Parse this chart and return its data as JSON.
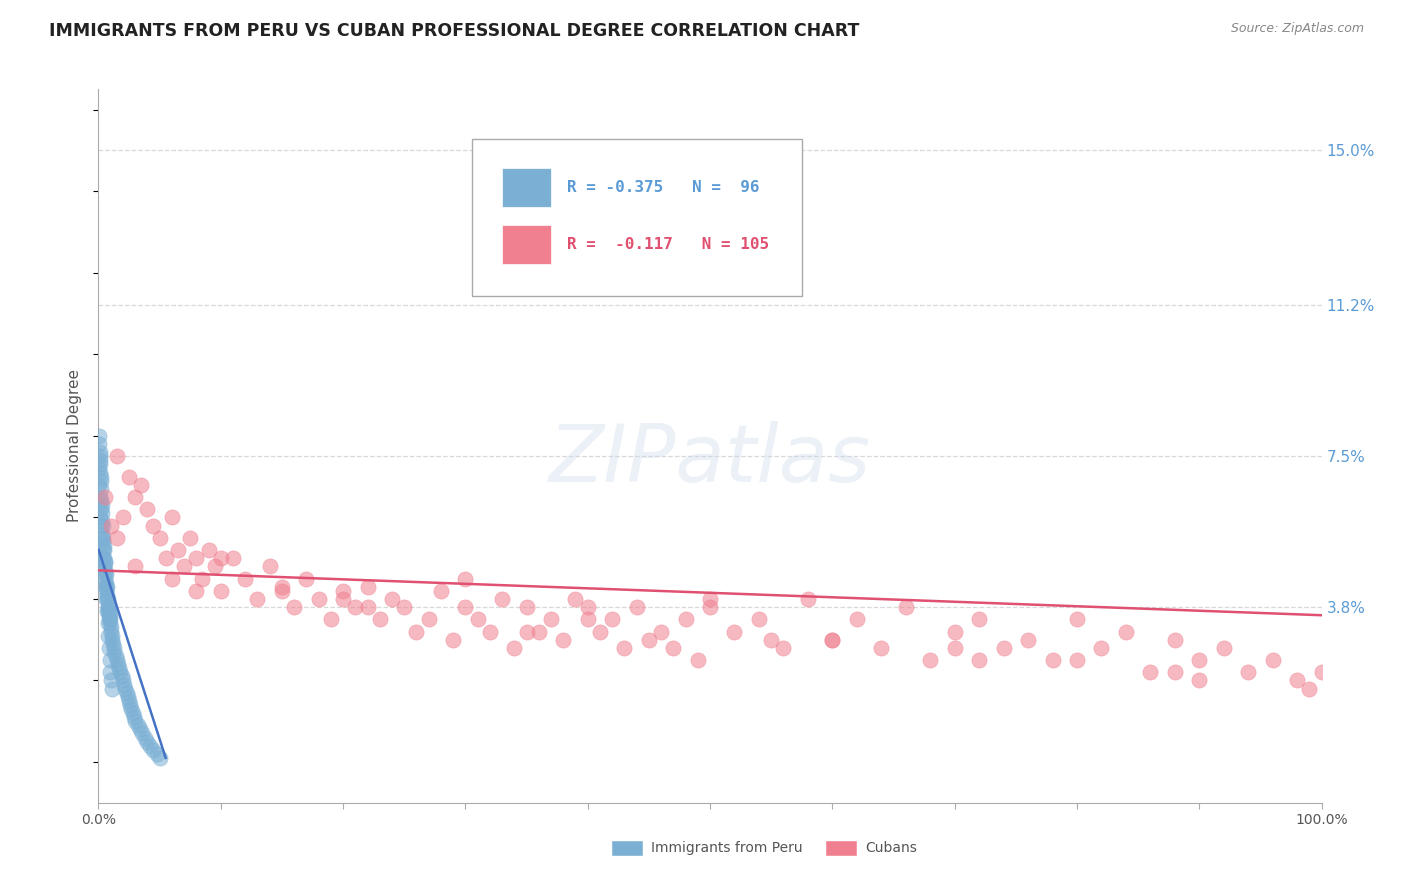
{
  "title": "IMMIGRANTS FROM PERU VS CUBAN PROFESSIONAL DEGREE CORRELATION CHART",
  "source_text": "Source: ZipAtlas.com",
  "ylabel": "Professional Degree",
  "y_tick_labels_right": [
    "3.8%",
    "7.5%",
    "11.2%",
    "15.0%"
  ],
  "y_tick_values_right": [
    0.038,
    0.075,
    0.112,
    0.15
  ],
  "x_min": 0.0,
  "x_max": 100.0,
  "y_min": -0.01,
  "y_max": 0.165,
  "series_peru": {
    "color": "#7bafd4",
    "legend_color": "#5b9bd5",
    "R": -0.375,
    "N": 96,
    "x": [
      0.05,
      0.08,
      0.1,
      0.12,
      0.15,
      0.18,
      0.2,
      0.22,
      0.25,
      0.28,
      0.3,
      0.32,
      0.35,
      0.38,
      0.4,
      0.42,
      0.45,
      0.48,
      0.5,
      0.52,
      0.55,
      0.58,
      0.6,
      0.62,
      0.65,
      0.68,
      0.7,
      0.72,
      0.75,
      0.78,
      0.8,
      0.82,
      0.85,
      0.88,
      0.9,
      0.92,
      0.95,
      0.98,
      1.0,
      1.05,
      1.1,
      1.15,
      1.2,
      1.25,
      1.3,
      1.4,
      1.5,
      1.6,
      1.7,
      1.8,
      1.9,
      2.0,
      2.1,
      2.2,
      2.3,
      2.4,
      2.5,
      2.6,
      2.7,
      2.8,
      2.9,
      3.0,
      3.2,
      3.4,
      3.6,
      3.8,
      4.0,
      4.2,
      4.5,
      4.8,
      5.0,
      0.05,
      0.07,
      0.09,
      0.11,
      0.13,
      0.16,
      0.19,
      0.23,
      0.27,
      0.31,
      0.36,
      0.41,
      0.46,
      0.51,
      0.56,
      0.61,
      0.66,
      0.71,
      0.76,
      0.81,
      0.86,
      0.91,
      0.96,
      1.02,
      1.08
    ],
    "y": [
      0.068,
      0.072,
      0.065,
      0.075,
      0.06,
      0.07,
      0.062,
      0.064,
      0.058,
      0.059,
      0.055,
      0.056,
      0.05,
      0.054,
      0.052,
      0.053,
      0.048,
      0.05,
      0.047,
      0.049,
      0.045,
      0.046,
      0.043,
      0.044,
      0.042,
      0.043,
      0.04,
      0.041,
      0.038,
      0.04,
      0.037,
      0.038,
      0.036,
      0.037,
      0.035,
      0.036,
      0.034,
      0.035,
      0.033,
      0.032,
      0.031,
      0.03,
      0.029,
      0.028,
      0.027,
      0.026,
      0.025,
      0.024,
      0.023,
      0.022,
      0.021,
      0.02,
      0.019,
      0.018,
      0.017,
      0.016,
      0.015,
      0.014,
      0.013,
      0.012,
      0.011,
      0.01,
      0.009,
      0.008,
      0.007,
      0.006,
      0.005,
      0.004,
      0.003,
      0.002,
      0.001,
      0.08,
      0.078,
      0.076,
      0.074,
      0.073,
      0.071,
      0.069,
      0.067,
      0.063,
      0.061,
      0.058,
      0.055,
      0.052,
      0.049,
      0.046,
      0.043,
      0.04,
      0.037,
      0.034,
      0.031,
      0.028,
      0.025,
      0.022,
      0.02,
      0.018
    ],
    "trend_x": [
      0.02,
      5.5
    ],
    "trend_y_start": 0.052,
    "trend_y_end": 0.001
  },
  "series_cuban": {
    "color": "#f08090",
    "legend_color": "#e05070",
    "R": -0.117,
    "N": 105,
    "x": [
      0.5,
      1.0,
      1.5,
      2.0,
      2.5,
      3.0,
      3.5,
      4.0,
      4.5,
      5.0,
      5.5,
      6.0,
      6.5,
      7.0,
      7.5,
      8.0,
      8.5,
      9.0,
      9.5,
      10.0,
      11.0,
      12.0,
      13.0,
      14.0,
      15.0,
      16.0,
      17.0,
      18.0,
      19.0,
      20.0,
      21.0,
      22.0,
      23.0,
      24.0,
      25.0,
      26.0,
      27.0,
      28.0,
      29.0,
      30.0,
      31.0,
      32.0,
      33.0,
      34.0,
      35.0,
      36.0,
      37.0,
      38.0,
      39.0,
      40.0,
      41.0,
      42.0,
      43.0,
      44.0,
      45.0,
      46.0,
      47.0,
      48.0,
      49.0,
      50.0,
      52.0,
      54.0,
      56.0,
      58.0,
      60.0,
      62.0,
      64.0,
      66.0,
      68.0,
      70.0,
      72.0,
      74.0,
      76.0,
      78.0,
      80.0,
      82.0,
      84.0,
      86.0,
      88.0,
      90.0,
      92.0,
      94.0,
      96.0,
      98.0,
      100.0,
      3.0,
      6.0,
      10.0,
      15.0,
      22.0,
      30.0,
      40.0,
      50.0,
      60.0,
      70.0,
      80.0,
      90.0,
      1.5,
      8.0,
      20.0,
      35.0,
      55.0,
      72.0,
      88.0,
      99.0
    ],
    "y": [
      0.065,
      0.058,
      0.075,
      0.06,
      0.07,
      0.065,
      0.068,
      0.062,
      0.058,
      0.055,
      0.05,
      0.06,
      0.052,
      0.048,
      0.055,
      0.05,
      0.045,
      0.052,
      0.048,
      0.042,
      0.05,
      0.045,
      0.04,
      0.048,
      0.043,
      0.038,
      0.045,
      0.04,
      0.035,
      0.042,
      0.038,
      0.043,
      0.035,
      0.04,
      0.038,
      0.032,
      0.035,
      0.042,
      0.03,
      0.038,
      0.035,
      0.032,
      0.04,
      0.028,
      0.038,
      0.032,
      0.035,
      0.03,
      0.04,
      0.038,
      0.032,
      0.035,
      0.028,
      0.038,
      0.03,
      0.032,
      0.028,
      0.035,
      0.025,
      0.038,
      0.032,
      0.035,
      0.028,
      0.04,
      0.03,
      0.035,
      0.028,
      0.038,
      0.025,
      0.032,
      0.035,
      0.028,
      0.03,
      0.025,
      0.035,
      0.028,
      0.032,
      0.022,
      0.03,
      0.025,
      0.028,
      0.022,
      0.025,
      0.02,
      0.022,
      0.048,
      0.045,
      0.05,
      0.042,
      0.038,
      0.045,
      0.035,
      0.04,
      0.03,
      0.028,
      0.025,
      0.02,
      0.055,
      0.042,
      0.04,
      0.032,
      0.03,
      0.025,
      0.022,
      0.018
    ],
    "trend_x": [
      0,
      100
    ],
    "trend_y_start": 0.047,
    "trend_y_end": 0.036
  },
  "watermark": "ZIPatlas",
  "background_color": "#ffffff",
  "grid_color": "#d8d8d8",
  "title_color": "#222222",
  "title_fontsize": 12.5,
  "axis_label_fontsize": 11,
  "tick_fontsize": 10,
  "legend_peru_text": "R = -0.375   N =  96",
  "legend_cuban_text": "R =  -0.117   N = 105"
}
